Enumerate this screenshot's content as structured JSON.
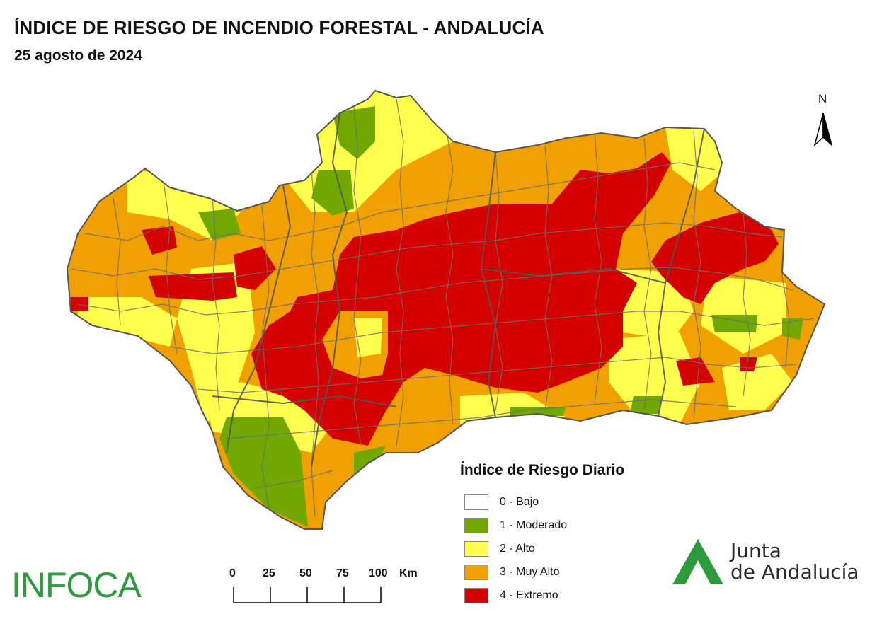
{
  "header": {
    "title": "ÍNDICE DE RIESGO DE INCENDIO FORESTAL - ANDALUCÍA",
    "date": "25 agosto de 2024"
  },
  "north_arrow": {
    "label": "N"
  },
  "legend": {
    "title": "Índice de Riesgo Diario",
    "items": [
      {
        "label": "0 - Bajo",
        "color": "#ffffff"
      },
      {
        "label": "1 - Moderado",
        "color": "#70a800"
      },
      {
        "label": "2 - Alto",
        "color": "#ffff4d"
      },
      {
        "label": "3 - Muy Alto",
        "color": "#f0a000"
      },
      {
        "label": "4 - Extremo",
        "color": "#d40000"
      }
    ]
  },
  "scale": {
    "ticks": [
      "0",
      "25",
      "50",
      "75",
      "100"
    ],
    "unit": "Km"
  },
  "logos": {
    "infoca": "INFOCA",
    "junta_line1": "Junta",
    "junta_line2": "de Andalucía"
  },
  "colors": {
    "municipal_borders": "#6e6e6e",
    "logo_green": "#2d9a3e"
  }
}
